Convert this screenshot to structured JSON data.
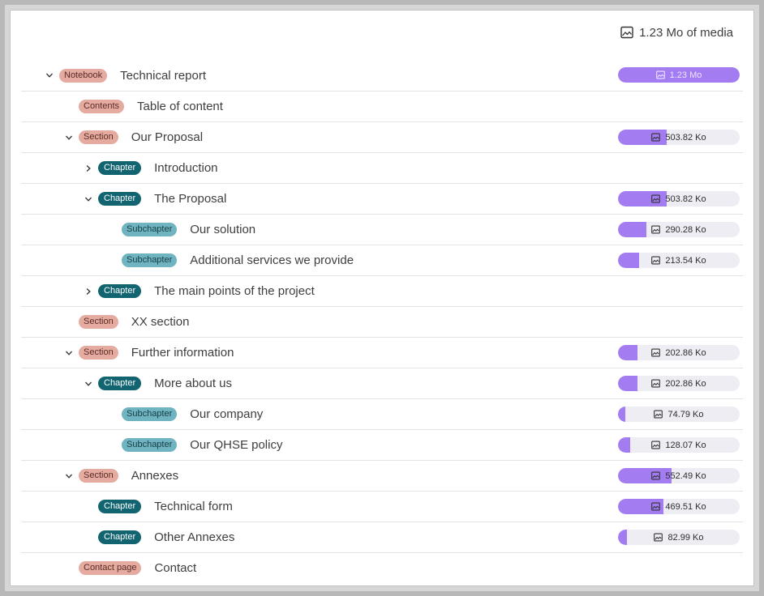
{
  "header": {
    "media_total": "1.23 Mo of media",
    "icon": "image-icon"
  },
  "colors": {
    "bar_fill": "#a37cf2",
    "bar_track": "#eeedf3",
    "notebook_badge": "#e6aba0",
    "chapter_badge": "#116470",
    "subchapter_badge": "#6fb4c0"
  },
  "rows": [
    {
      "level": 0,
      "expand": "expanded",
      "badge": "Notebook",
      "kind": "notebook",
      "title": "Technical report",
      "media": "1.23 Mo",
      "fraction": 1.0
    },
    {
      "level": 1,
      "expand": "none",
      "badge": "Contents",
      "kind": "contents",
      "title": "Table of content",
      "media": null,
      "fraction": null
    },
    {
      "level": 1,
      "expand": "expanded",
      "badge": "Section",
      "kind": "section",
      "title": "Our Proposal",
      "media": "503.82 Ko",
      "fraction": 0.4
    },
    {
      "level": 2,
      "expand": "collapsed",
      "badge": "Chapter",
      "kind": "chapter",
      "title": "Introduction",
      "media": null,
      "fraction": null
    },
    {
      "level": 2,
      "expand": "expanded",
      "badge": "Chapter",
      "kind": "chapter",
      "title": "The Proposal",
      "media": "503.82 Ko",
      "fraction": 0.4
    },
    {
      "level": 3,
      "expand": "none",
      "badge": "Subchapter",
      "kind": "subchapter",
      "title": "Our solution",
      "media": "290.28 Ko",
      "fraction": 0.23
    },
    {
      "level": 3,
      "expand": "none",
      "badge": "Subchapter",
      "kind": "subchapter",
      "title": "Additional services we provide",
      "media": "213.54 Ko",
      "fraction": 0.17
    },
    {
      "level": 2,
      "expand": "collapsed",
      "badge": "Chapter",
      "kind": "chapter",
      "title": "The main points of the project",
      "media": null,
      "fraction": null
    },
    {
      "level": 1,
      "expand": "none",
      "badge": "Section",
      "kind": "section",
      "title": "XX section",
      "media": null,
      "fraction": null
    },
    {
      "level": 1,
      "expand": "expanded",
      "badge": "Section",
      "kind": "section",
      "title": "Further information",
      "media": "202.86 Ko",
      "fraction": 0.16
    },
    {
      "level": 2,
      "expand": "expanded",
      "badge": "Chapter",
      "kind": "chapter",
      "title": "More about us",
      "media": "202.86 Ko",
      "fraction": 0.16
    },
    {
      "level": 3,
      "expand": "none",
      "badge": "Subchapter",
      "kind": "subchapter",
      "title": "Our company",
      "media": "74.79 Ko",
      "fraction": 0.06
    },
    {
      "level": 3,
      "expand": "none",
      "badge": "Subchapter",
      "kind": "subchapter",
      "title": "Our QHSE policy",
      "media": "128.07 Ko",
      "fraction": 0.1
    },
    {
      "level": 1,
      "expand": "expanded",
      "badge": "Section",
      "kind": "section",
      "title": "Annexes",
      "media": "552.49 Ko",
      "fraction": 0.44
    },
    {
      "level": 2,
      "expand": "none",
      "badge": "Chapter",
      "kind": "chapter",
      "title": "Technical form",
      "media": "469.51 Ko",
      "fraction": 0.37
    },
    {
      "level": 2,
      "expand": "none",
      "badge": "Chapter",
      "kind": "chapter",
      "title": "Other Annexes",
      "media": "82.99 Ko",
      "fraction": 0.07
    },
    {
      "level": 1,
      "expand": "none",
      "badge": "Contact page",
      "kind": "contact",
      "title": "Contact",
      "media": null,
      "fraction": null
    }
  ]
}
